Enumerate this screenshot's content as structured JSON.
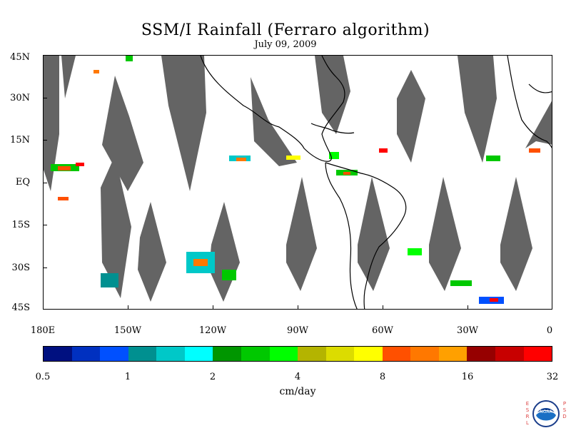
{
  "title": "SSM/I Rainfall (Ferraro algorithm)",
  "date": "July 09, 2009",
  "map": {
    "lat_labels": [
      "45N",
      "30N",
      "15N",
      "EQ",
      "15S",
      "30S",
      "45S"
    ],
    "lat_values": [
      45,
      30,
      15,
      0,
      -15,
      -30,
      -45
    ],
    "lon_labels": [
      "180E",
      "150W",
      "120W",
      "90W",
      "60W",
      "30W",
      "0"
    ],
    "lon_values": [
      -180,
      -150,
      -120,
      -90,
      -60,
      -30,
      0
    ],
    "extent": {
      "lon": [
        -180,
        0
      ],
      "lat": [
        -45,
        45
      ]
    },
    "swath_color": "#646464",
    "coastline_color": "#000000"
  },
  "colorbar": {
    "colors": [
      "#001080",
      "#0030c0",
      "#0050ff",
      "#009090",
      "#00c8c8",
      "#00ffff",
      "#009600",
      "#00c800",
      "#00ff00",
      "#b4b400",
      "#dcdc00",
      "#ffff00",
      "#ff5000",
      "#ff7800",
      "#ffa000",
      "#960000",
      "#c80000",
      "#ff0000"
    ],
    "tick_labels": [
      "0.5",
      "1",
      "2",
      "4",
      "8",
      "16",
      "32"
    ],
    "units": "cm/day"
  },
  "logo": {
    "name": "NOAA",
    "left_text": "ESRL",
    "right_text": "PSD"
  }
}
